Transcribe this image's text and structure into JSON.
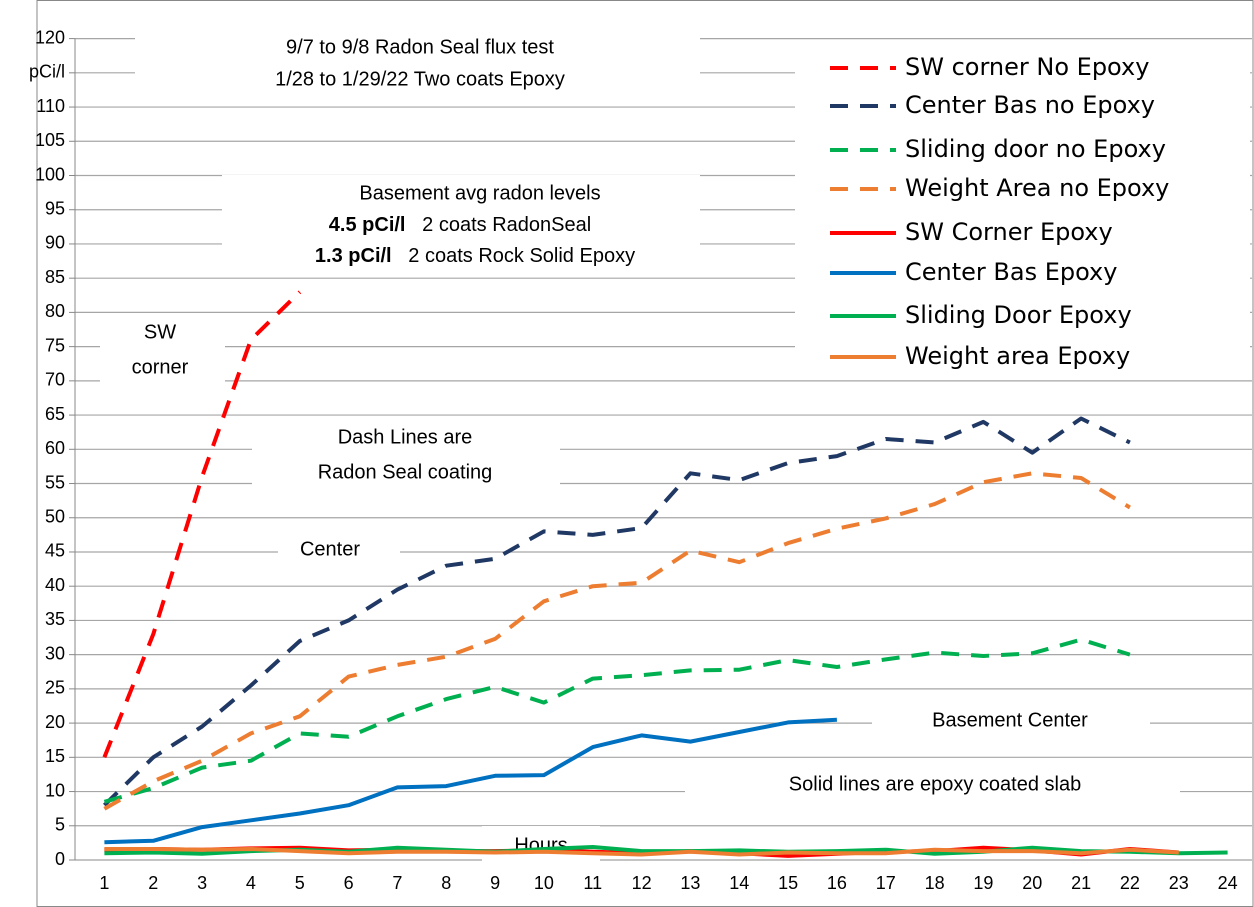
{
  "chart_data": {
    "type": "line",
    "title": [
      "9/7 to 9/8  Radon Seal flux test",
      "1/28 to 1/29/22 Two coats Epoxy"
    ],
    "x_label": "Hours",
    "categories": [
      1,
      2,
      3,
      4,
      5,
      6,
      7,
      8,
      9,
      10,
      11,
      12,
      13,
      14,
      15,
      16,
      17,
      18,
      19,
      20,
      21,
      22,
      23,
      24
    ],
    "ylim": [
      0,
      120
    ],
    "yticks": [
      0,
      5,
      10,
      15,
      20,
      25,
      30,
      35,
      40,
      45,
      50,
      55,
      60,
      65,
      70,
      75,
      80,
      85,
      90,
      95,
      100,
      105,
      110,
      {
        "value": 115,
        "label": "pCi/l"
      },
      120
    ],
    "grid": true,
    "legend": "upper right",
    "series": [
      {
        "name": "SW corner No Epoxy",
        "color": "#ff0000",
        "style": "dashed",
        "values": [
          15,
          33,
          56,
          76,
          83,
          null,
          null,
          null,
          null,
          null,
          null,
          null,
          null,
          null,
          null,
          null,
          null,
          null,
          null,
          null,
          null,
          null,
          null,
          null
        ]
      },
      {
        "name": "Center Bas no Epoxy",
        "color": "#203864",
        "style": "dashed",
        "values": [
          8,
          15,
          19.5,
          25.5,
          32,
          35,
          39.5,
          43,
          44,
          48,
          47.5,
          48.5,
          56.5,
          55.5,
          58,
          59,
          61.5,
          61,
          64,
          59.5,
          64.5,
          61,
          null,
          null
        ]
      },
      {
        "name": "Sliding door no Epoxy",
        "color": "#00b050",
        "style": "dashed",
        "values": [
          8.5,
          10.5,
          13.5,
          14.5,
          18.5,
          18,
          21,
          23.5,
          25.3,
          23,
          26.5,
          27,
          27.7,
          27.8,
          29.2,
          28.2,
          29.3,
          30.3,
          29.8,
          30.2,
          32.2,
          30,
          null,
          null
        ]
      },
      {
        "name": "Weight Area no Epoxy",
        "color": "#ed7d31",
        "style": "dashed",
        "values": [
          7.5,
          11.5,
          14.5,
          18.5,
          21,
          26.8,
          28.5,
          29.7,
          32.3,
          37.8,
          40,
          40.5,
          45.2,
          43.5,
          46.3,
          48.4,
          49.9,
          52,
          55.2,
          56.5,
          55.8,
          51.5,
          null,
          null
        ]
      },
      {
        "name": "SW Corner Epoxy",
        "color": "#ff0000",
        "style": "solid",
        "values": [
          1.5,
          1.6,
          1.5,
          1.7,
          1.8,
          1.4,
          1.5,
          1.3,
          1.3,
          1.4,
          1.2,
          1.0,
          1.3,
          1.0,
          0.6,
          0.9,
          1.2,
          1.3,
          1.8,
          1.4,
          0.8,
          1.6,
          1.1,
          null
        ]
      },
      {
        "name": "Center Bas Epoxy",
        "color": "#0070c0",
        "style": "solid",
        "values": [
          2.6,
          2.8,
          4.8,
          5.8,
          6.8,
          8,
          10.6,
          10.8,
          12.3,
          12.4,
          16.5,
          18.2,
          17.3,
          18.7,
          20.1,
          20.5,
          null,
          null,
          null,
          null,
          null,
          null,
          null,
          null
        ]
      },
      {
        "name": "Sliding Door Epoxy",
        "color": "#00b050",
        "style": "solid",
        "values": [
          1.0,
          1.1,
          0.9,
          1.3,
          1.5,
          1.2,
          1.8,
          1.5,
          1.2,
          1.6,
          1.9,
          1.3,
          1.3,
          1.4,
          1.2,
          1.3,
          1.5,
          0.9,
          1.2,
          1.8,
          1.3,
          1.2,
          1.0,
          1.1
        ]
      },
      {
        "name": "Weight area Epoxy",
        "color": "#ed7d31",
        "style": "solid",
        "values": [
          1.6,
          1.6,
          1.5,
          1.6,
          1.3,
          1.0,
          1.2,
          1.2,
          1.1,
          1.2,
          1.0,
          0.8,
          1.2,
          0.8,
          1.1,
          1.0,
          1.0,
          1.5,
          1.3,
          1.3,
          1.0,
          1.5,
          1.1,
          null
        ]
      }
    ],
    "basement_note": {
      "heading": "Basement  avg radon levels",
      "rows": [
        {
          "bold": "4.5 pCi/l",
          "text": "2 coats RadonSeal"
        },
        {
          "bold": "1.3 pCi/l",
          "text": "2 coats Rock Solid Epoxy"
        }
      ]
    },
    "annotations": [
      {
        "lines": [
          "SW",
          "corner"
        ]
      },
      {
        "lines": [
          "Dash Lines are",
          "Radon Seal coating"
        ]
      },
      {
        "lines": [
          "Center"
        ]
      },
      {
        "lines": [
          "Basement Center"
        ]
      },
      {
        "lines": [
          "Solid lines are epoxy coated slab"
        ]
      }
    ]
  }
}
